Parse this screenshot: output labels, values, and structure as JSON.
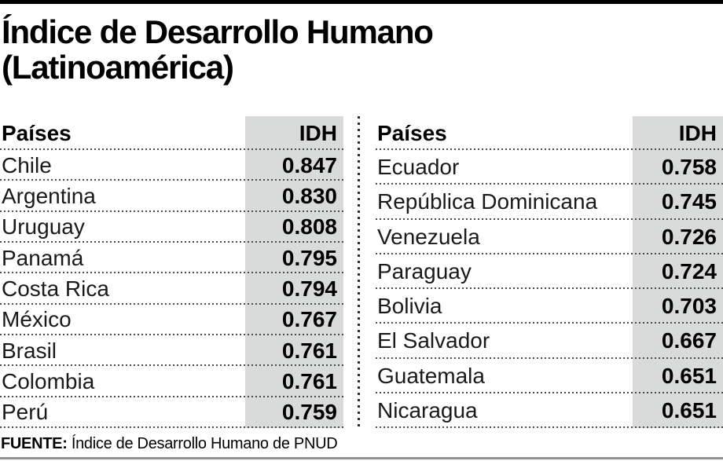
{
  "title": {
    "line1": "Índice de Desarrollo Humano",
    "line2": "(Latinoamérica)"
  },
  "tables": {
    "left": {
      "country_header": "Países",
      "value_header": "IDH",
      "rows": [
        {
          "country": "Chile",
          "idh": "0.847"
        },
        {
          "country": "Argentina",
          "idh": "0.830"
        },
        {
          "country": "Uruguay",
          "idh": "0.808"
        },
        {
          "country": "Panamá",
          "idh": "0.795"
        },
        {
          "country": "Costa Rica",
          "idh": "0.794"
        },
        {
          "country": "México",
          "idh": "0.767"
        },
        {
          "country": "Brasil",
          "idh": "0.761"
        },
        {
          "country": "Colombia",
          "idh": "0.761"
        },
        {
          "country": "Perú",
          "idh": "0.759"
        }
      ]
    },
    "right": {
      "country_header": "Países",
      "value_header": "IDH",
      "rows": [
        {
          "country": "Ecuador",
          "idh": "0.758"
        },
        {
          "country": "República Dominicana",
          "idh": "0.745"
        },
        {
          "country": "Venezuela",
          "idh": "0.726"
        },
        {
          "country": "Paraguay",
          "idh": "0.724"
        },
        {
          "country": "Bolivia",
          "idh": "0.703"
        },
        {
          "country": "El Salvador",
          "idh": "0.667"
        },
        {
          "country": "Guatemala",
          "idh": "0.651"
        },
        {
          "country": "Nicaragua",
          "idh": "0.651"
        }
      ]
    }
  },
  "source": {
    "label": "FUENTE:",
    "text": "Índice de Desarrollo Humano de PNUD"
  },
  "colors": {
    "top_bar": "#000000",
    "value_column_bg": "#d8dbda",
    "dotted_line": "#4a4a4a",
    "divider_dots": "#2f2f2f",
    "bottom_rule": "#8f9492",
    "text": "#1a1a1a"
  },
  "chart_data": {
    "type": "table",
    "title": "Índice de Desarrollo Humano (Latinoamérica)",
    "columns": [
      "Países",
      "IDH"
    ],
    "rows": [
      [
        "Chile",
        0.847
      ],
      [
        "Argentina",
        0.83
      ],
      [
        "Uruguay",
        0.808
      ],
      [
        "Panamá",
        0.795
      ],
      [
        "Costa Rica",
        0.794
      ],
      [
        "México",
        0.767
      ],
      [
        "Brasil",
        0.761
      ],
      [
        "Colombia",
        0.761
      ],
      [
        "Perú",
        0.759
      ],
      [
        "Ecuador",
        0.758
      ],
      [
        "República Dominicana",
        0.745
      ],
      [
        "Venezuela",
        0.726
      ],
      [
        "Paraguay",
        0.724
      ],
      [
        "Bolivia",
        0.703
      ],
      [
        "El Salvador",
        0.667
      ],
      [
        "Guatemala",
        0.651
      ],
      [
        "Nicaragua",
        0.651
      ]
    ],
    "layout": "two side-by-side country/IDH tables separated by a vertical dotted rule; IDH column shaded gray; dotted row separators",
    "source": "FUENTE: Índice de Desarrollo Humano de PNUD"
  }
}
